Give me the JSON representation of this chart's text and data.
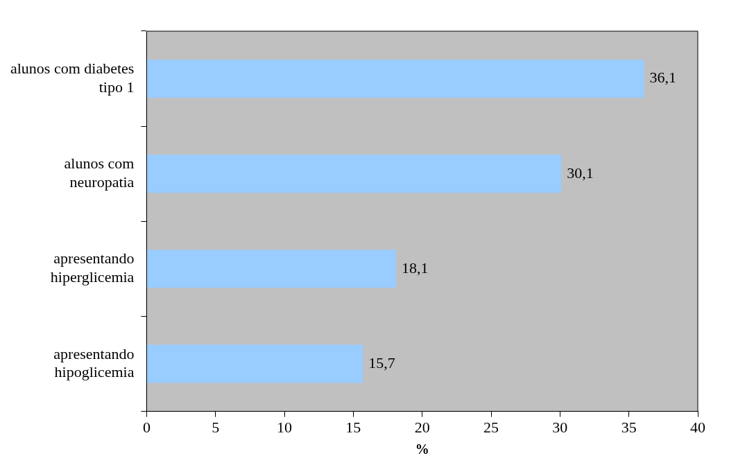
{
  "chart_data": {
    "type": "bar",
    "orientation": "horizontal",
    "xlabel": "%",
    "categories": [
      "alunos com diabetes tipo 1",
      "alunos com neuropatia",
      "apresentando hiperglicemia",
      "apresentando hipoglicemia"
    ],
    "values": [
      36.1,
      30.1,
      18.1,
      15.7
    ],
    "value_labels": [
      "36,1",
      "30,1",
      "18,1",
      "15,7"
    ],
    "color": "#99ccff",
    "xlim": [
      0,
      40
    ],
    "xticks": [
      0,
      5,
      10,
      15,
      20,
      25,
      30,
      35,
      40
    ],
    "grid": false,
    "legend": false
  }
}
